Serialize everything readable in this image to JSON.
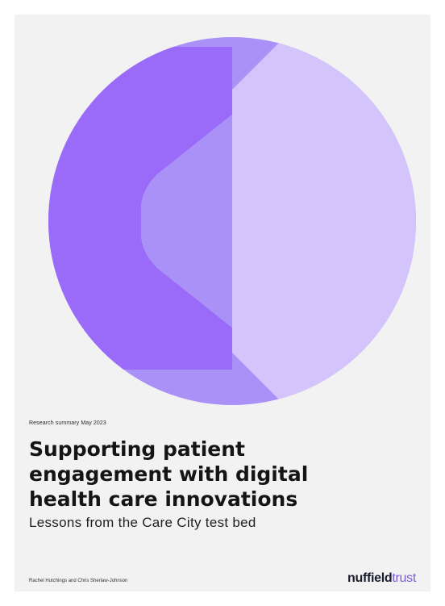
{
  "cover": {
    "kicker": "Research summary May 2023",
    "title_lines": [
      "Supporting patient",
      "engagement with digital",
      "health care innovations"
    ],
    "subtitle": "Lessons from the Care City test bed",
    "authors": "Rachel Hutchings and Chris Sherlaw-Johnson",
    "logo": {
      "part1": "nuffield",
      "part2": "trust"
    },
    "colors": {
      "background": "#f2f2f2",
      "circle_light": "#d3c4fb",
      "circle_mid": "#a991f8",
      "panel_dark": "#9a6bf9",
      "logo_accent": "#7b5bd6"
    }
  }
}
